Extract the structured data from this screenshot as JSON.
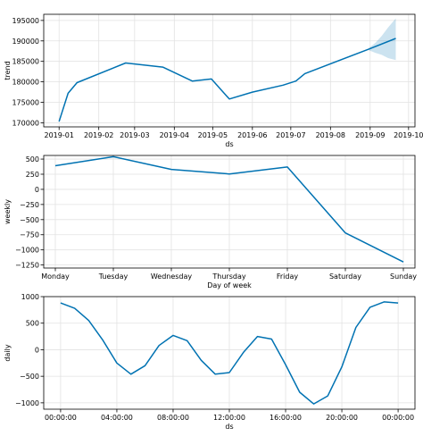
{
  "colors": {
    "line": "#0072B2",
    "band": "#0072B2",
    "grid": "#e2e2e2"
  },
  "chart_data": [
    {
      "type": "line",
      "xlabel": "ds",
      "ylabel": "trend",
      "x_type": "date",
      "xlim": [
        "2018-12-20",
        "2019-10-06"
      ],
      "ylim": [
        169000,
        196500
      ],
      "grid": true,
      "xticks": [
        "2019-01-01",
        "2019-02-01",
        "2019-03-01",
        "2019-04-01",
        "2019-05-01",
        "2019-06-01",
        "2019-07-01",
        "2019-08-01",
        "2019-09-01",
        "2019-10-01"
      ],
      "xtick_labels": [
        "2019-01",
        "2019-02",
        "2019-03",
        "2019-04",
        "2019-05",
        "2019-06",
        "2019-07",
        "2019-08",
        "2019-09",
        "2019-10"
      ],
      "yticks": [
        170000,
        175000,
        180000,
        185000,
        190000,
        195000
      ],
      "ytick_labels": [
        "170000",
        "175000",
        "180000",
        "185000",
        "190000",
        "195000"
      ],
      "series": [
        {
          "x": [
            "2019-01-01",
            "2019-01-08",
            "2019-01-15",
            "2019-02-22",
            "2019-03-23",
            "2019-04-15",
            "2019-04-30",
            "2019-05-14",
            "2019-06-01",
            "2019-06-25",
            "2019-07-05",
            "2019-07-12",
            "2019-08-31",
            "2019-09-21"
          ],
          "y": [
            170300,
            177200,
            179800,
            184600,
            183600,
            180200,
            180700,
            175800,
            177500,
            179200,
            180200,
            182000,
            188000,
            190600
          ]
        }
      ],
      "uncertainty_band": {
        "x": [
          "2019-08-31",
          "2019-09-05",
          "2019-09-10",
          "2019-09-15",
          "2019-09-21"
        ],
        "upper": [
          188300,
          189500,
          191200,
          193300,
          195500
        ],
        "lower": [
          187700,
          187100,
          186600,
          185800,
          185300
        ]
      }
    },
    {
      "type": "line",
      "xlabel": "Day of week",
      "ylabel": "weekly",
      "xlim": [
        -0.2,
        6.2
      ],
      "ylim": [
        -1300,
        560
      ],
      "grid": true,
      "categories": [
        "Monday",
        "Tuesday",
        "Wednesday",
        "Thursday",
        "Friday",
        "Saturday",
        "Sunday"
      ],
      "yticks": [
        -1250,
        -1000,
        -750,
        -500,
        -250,
        0,
        250,
        500
      ],
      "ytick_labels": [
        "−1250",
        "−1000",
        "−750",
        "−500",
        "−250",
        "0",
        "250",
        "500"
      ],
      "series": [
        {
          "values": [
            390,
            540,
            330,
            255,
            370,
            -720,
            -1200
          ]
        }
      ]
    },
    {
      "type": "line",
      "xlabel": "ds",
      "ylabel": "daily",
      "x_type": "hours",
      "xlim": [
        -1.2,
        25.2
      ],
      "ylim": [
        -1120,
        1000
      ],
      "grid": true,
      "xticks": [
        0,
        4,
        8,
        12,
        16,
        20,
        24
      ],
      "xtick_labels": [
        "00:00:00",
        "04:00:00",
        "08:00:00",
        "12:00:00",
        "16:00:00",
        "20:00:00",
        "00:00:00"
      ],
      "yticks": [
        -1000,
        -500,
        0,
        500,
        1000
      ],
      "ytick_labels": [
        "−1000",
        "−500",
        "0",
        "500",
        "1000"
      ],
      "series": [
        {
          "x": [
            0,
            1,
            2,
            3,
            4,
            5,
            6,
            7,
            8,
            9,
            10,
            11,
            12,
            13,
            14,
            15,
            16,
            17,
            18,
            19,
            20,
            21,
            22,
            23,
            24
          ],
          "y": [
            880,
            780,
            550,
            180,
            -250,
            -460,
            -300,
            80,
            270,
            170,
            -200,
            -460,
            -430,
            -50,
            250,
            200,
            -280,
            -800,
            -1020,
            -870,
            -320,
            420,
            800,
            900,
            880
          ]
        }
      ]
    }
  ]
}
